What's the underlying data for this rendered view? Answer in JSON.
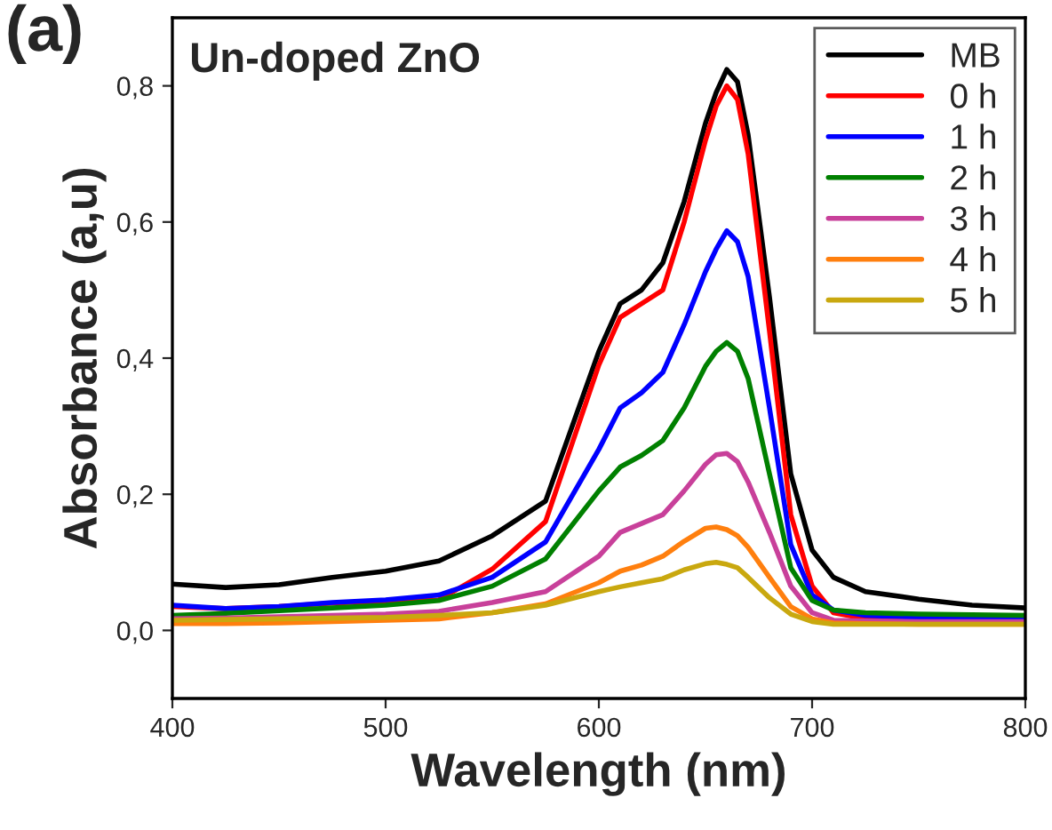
{
  "chart_data": {
    "type": "line",
    "xlabel": "Wavelength (nm)",
    "ylabel": "Absorbance (a,u)",
    "annotations": [
      "(a)",
      "Un-doped ZnO"
    ],
    "xlim": [
      400,
      800
    ],
    "xticks": [
      400,
      500,
      600,
      700,
      800
    ],
    "ylim": [
      -0.1,
      0.9
    ],
    "yticks": [
      {
        "value": 0.0,
        "label": "0,0"
      },
      {
        "value": 0.2,
        "label": "0,2"
      },
      {
        "value": 0.4,
        "label": "0,4"
      },
      {
        "value": 0.6,
        "label": "0,6"
      },
      {
        "value": 0.8,
        "label": "0,8"
      }
    ],
    "grid": false,
    "legend": "top right",
    "line_style": "solid",
    "marker": "none",
    "x": [
      400,
      425,
      450,
      475,
      500,
      525,
      550,
      575,
      600,
      610,
      620,
      630,
      640,
      650,
      655,
      660,
      665,
      670,
      680,
      690,
      700,
      710,
      725,
      750,
      775,
      800
    ],
    "series": [
      {
        "name": "MB",
        "color": "#000000",
        "values": [
          0.068,
          0.063,
          0.067,
          0.078,
          0.087,
          0.102,
          0.139,
          0.19,
          0.41,
          0.48,
          0.5,
          0.54,
          0.63,
          0.745,
          0.79,
          0.824,
          0.806,
          0.728,
          0.49,
          0.23,
          0.118,
          0.078,
          0.057,
          0.046,
          0.037,
          0.033
        ]
      },
      {
        "name": "0 h",
        "color": "#ff0000",
        "values": [
          0.035,
          0.032,
          0.035,
          0.04,
          0.043,
          0.045,
          0.09,
          0.16,
          0.39,
          0.46,
          0.48,
          0.5,
          0.6,
          0.72,
          0.77,
          0.8,
          0.78,
          0.7,
          0.44,
          0.17,
          0.065,
          0.026,
          0.017,
          0.017,
          null,
          null
        ]
      },
      {
        "name": "1 h",
        "color": "#0000ff",
        "values": [
          0.037,
          0.032,
          0.035,
          0.041,
          0.045,
          0.052,
          0.078,
          0.13,
          0.266,
          0.327,
          0.349,
          0.379,
          0.449,
          0.527,
          0.56,
          0.587,
          0.571,
          0.52,
          0.327,
          0.126,
          0.052,
          0.03,
          0.022,
          0.019,
          0.018,
          0.017
        ]
      },
      {
        "name": "2 h",
        "color": "#008000",
        "values": [
          0.022,
          0.025,
          0.029,
          0.033,
          0.037,
          0.044,
          0.065,
          0.105,
          0.205,
          0.24,
          0.257,
          0.279,
          0.327,
          0.388,
          0.41,
          0.423,
          0.41,
          0.37,
          0.23,
          0.092,
          0.044,
          0.03,
          0.026,
          0.024,
          0.023,
          0.022
        ]
      },
      {
        "name": "3 h",
        "color": "#c8409a",
        "values": [
          0.017,
          0.018,
          0.02,
          0.022,
          0.024,
          0.028,
          0.041,
          0.057,
          0.109,
          0.144,
          0.157,
          0.17,
          0.205,
          0.244,
          0.258,
          0.26,
          0.248,
          0.218,
          0.144,
          0.065,
          0.026,
          0.015,
          0.014,
          0.013,
          0.013,
          0.013
        ]
      },
      {
        "name": "4 h",
        "color": "#ff7f0e",
        "values": [
          0.01,
          0.01,
          0.011,
          0.013,
          0.015,
          0.017,
          0.026,
          0.039,
          0.07,
          0.087,
          0.096,
          0.109,
          0.131,
          0.15,
          0.152,
          0.148,
          0.139,
          0.122,
          0.078,
          0.035,
          0.017,
          0.011,
          0.01,
          0.009,
          0.009,
          0.009
        ]
      },
      {
        "name": "5 h",
        "color": "#c9a80f",
        "values": [
          0.015,
          0.016,
          0.017,
          0.018,
          0.019,
          0.022,
          0.026,
          0.037,
          0.057,
          0.064,
          0.07,
          0.076,
          0.089,
          0.098,
          0.1,
          0.097,
          0.092,
          0.078,
          0.048,
          0.024,
          0.013,
          0.009,
          0.009,
          0.009,
          0.009,
          0.009
        ]
      }
    ]
  }
}
